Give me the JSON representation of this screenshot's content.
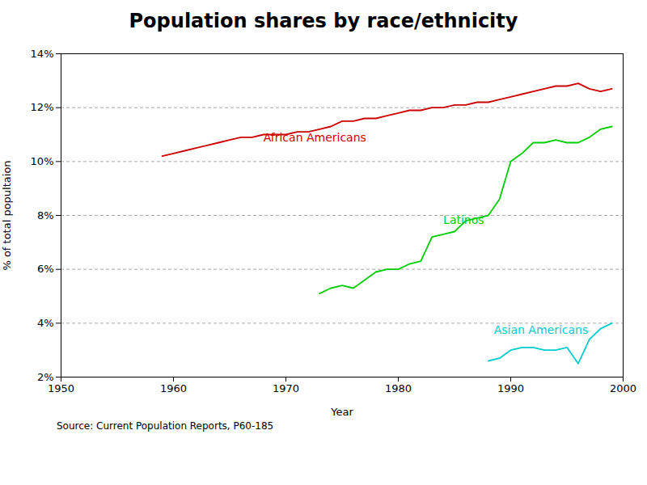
{
  "chart_data": {
    "type": "line",
    "title": "Population shares by race/ethnicity",
    "xlabel": "Year",
    "ylabel": "% of total popultaion",
    "source": "Source:  Current Population Reports, P60-185",
    "xlim": [
      1950,
      2000
    ],
    "ylim": [
      0.02,
      0.14
    ],
    "xticks": [
      1950,
      1960,
      1970,
      1980,
      1990,
      2000
    ],
    "yticks": [
      {
        "value": 0.02,
        "label": "2%"
      },
      {
        "value": 0.04,
        "label": "4%"
      },
      {
        "value": 0.06,
        "label": "6%"
      },
      {
        "value": 0.08,
        "label": "8%"
      },
      {
        "value": 0.1,
        "label": "10%"
      },
      {
        "value": 0.12,
        "label": "12%"
      },
      {
        "value": 0.14,
        "label": "14%"
      }
    ],
    "grid": true,
    "series": [
      {
        "name": "African Americans",
        "color": "#cc0000",
        "x": [
          1959,
          1960,
          1961,
          1962,
          1963,
          1964,
          1965,
          1966,
          1967,
          1968,
          1969,
          1970,
          1971,
          1972,
          1973,
          1974,
          1975,
          1976,
          1977,
          1978,
          1979,
          1980,
          1981,
          1982,
          1983,
          1984,
          1985,
          1986,
          1987,
          1988,
          1989,
          1990,
          1991,
          1992,
          1993,
          1994,
          1995,
          1996,
          1997,
          1998,
          1999
        ],
        "values": [
          0.102,
          0.103,
          0.104,
          0.105,
          0.106,
          0.107,
          0.108,
          0.109,
          0.109,
          0.11,
          0.11,
          0.11,
          0.111,
          0.111,
          0.112,
          0.113,
          0.115,
          0.115,
          0.116,
          0.116,
          0.117,
          0.118,
          0.119,
          0.119,
          0.12,
          0.12,
          0.121,
          0.121,
          0.122,
          0.122,
          0.123,
          0.124,
          0.125,
          0.126,
          0.127,
          0.128,
          0.128,
          0.129,
          0.127,
          0.126,
          0.127
        ]
      },
      {
        "name": "Latinos",
        "color": "#00cc00",
        "x": [
          1973,
          1974,
          1975,
          1976,
          1977,
          1978,
          1979,
          1980,
          1981,
          1982,
          1983,
          1984,
          1985,
          1986,
          1987,
          1988,
          1989,
          1990,
          1991,
          1992,
          1993,
          1994,
          1995,
          1996,
          1997,
          1998,
          1999
        ],
        "values": [
          0.051,
          0.053,
          0.054,
          0.053,
          0.056,
          0.059,
          0.06,
          0.06,
          0.062,
          0.063,
          0.072,
          0.073,
          0.074,
          0.078,
          0.079,
          0.08,
          0.086,
          0.1,
          0.103,
          0.107,
          0.107,
          0.108,
          0.107,
          0.107,
          0.109,
          0.112,
          0.113
        ]
      },
      {
        "name": "Asian Americans",
        "color": "#00cccc",
        "x": [
          1988,
          1989,
          1990,
          1991,
          1992,
          1993,
          1994,
          1995,
          1996,
          1997,
          1998,
          1999
        ],
        "values": [
          0.026,
          0.027,
          0.03,
          0.031,
          0.031,
          0.03,
          0.03,
          0.031,
          0.025,
          0.034,
          0.038,
          0.04
        ]
      }
    ],
    "annotations": [
      {
        "text": "African Americans",
        "x": 1968,
        "y": 0.1075,
        "color": "#cc0000"
      },
      {
        "text": "Latinos",
        "x": 1984,
        "y": 0.077,
        "color": "#00cc00"
      },
      {
        "text": "Asian Americans",
        "x": 1988.5,
        "y": 0.036,
        "color": "#00cccc"
      }
    ]
  }
}
